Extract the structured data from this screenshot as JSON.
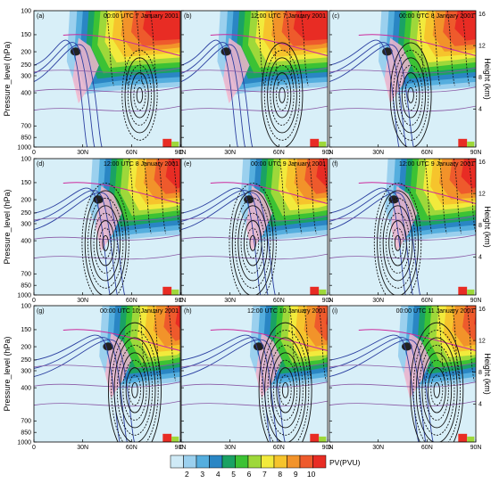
{
  "figure": {
    "y_axis_title_left": "Pressure_level (hPa)",
    "y_axis_title_right": "Height (km)",
    "pressure_ticks": [
      "100",
      "150",
      "200",
      "250",
      "300",
      "400",
      "700",
      "850",
      "1000"
    ],
    "height_ticks": [
      "16",
      "12",
      "8",
      "4"
    ],
    "x_ticks": [
      "0",
      "30N",
      "60N",
      "90N"
    ],
    "colorbar": {
      "label": "PV(PVU)",
      "tick_labels": [
        "2",
        "3",
        "4",
        "5",
        "6",
        "7",
        "8",
        "9",
        "10"
      ],
      "colors": [
        "#cfeaf6",
        "#9bd0ee",
        "#55aede",
        "#2a86c4",
        "#1aa264",
        "#3cc234",
        "#9ed83a",
        "#f2ea3c",
        "#f6c42c",
        "#f2932a",
        "#ee5a2c",
        "#e82c24"
      ]
    },
    "colors": {
      "background_fill": "#d8eff8",
      "contour_black": "#111111",
      "contour_blue": "#2b3fa0",
      "contour_magenta": "#cc2a9c",
      "contour_purple": "#8a5aa6",
      "pink_shading": "#f4b6cc"
    }
  },
  "chart_data": [
    {
      "type": "heatmap",
      "panel": "a",
      "label": "(a)",
      "time": "00:00 UTC 7 January 2001",
      "jet_lat_deg": 22,
      "contour_center_lat_deg": 65,
      "contour_strength": 0.45
    },
    {
      "type": "heatmap",
      "panel": "b",
      "label": "(b)",
      "time": "12:00 UTC 7 January 2001",
      "jet_lat_deg": 24,
      "contour_center_lat_deg": 62,
      "contour_strength": 0.5
    },
    {
      "type": "heatmap",
      "panel": "c",
      "label": "(c)",
      "time": "00:00 UTC 8 January 2001",
      "jet_lat_deg": 32,
      "contour_center_lat_deg": 50,
      "contour_strength": 0.65
    },
    {
      "type": "heatmap",
      "panel": "d",
      "label": "(d)",
      "time": "12:00 UTC 8 January 2001",
      "jet_lat_deg": 36,
      "contour_center_lat_deg": 44,
      "contour_strength": 0.75
    },
    {
      "type": "heatmap",
      "panel": "e",
      "label": "(e)",
      "time": "00:00 UTC 9 January 2001",
      "jet_lat_deg": 38,
      "contour_center_lat_deg": 44,
      "contour_strength": 0.8
    },
    {
      "type": "heatmap",
      "panel": "f",
      "label": "(f)",
      "time": "12:00 UTC 9 January 2001",
      "jet_lat_deg": 36,
      "contour_center_lat_deg": 42,
      "contour_strength": 0.85
    },
    {
      "type": "heatmap",
      "panel": "g",
      "label": "(g)",
      "time": "00:00 UTC 10 January 2001",
      "jet_lat_deg": 42,
      "contour_center_lat_deg": 62,
      "contour_strength": 0.95
    },
    {
      "type": "heatmap",
      "panel": "h",
      "label": "(h)",
      "time": "12:00 UTC 10 January 2001",
      "jet_lat_deg": 44,
      "contour_center_lat_deg": 64,
      "contour_strength": 1.0
    },
    {
      "type": "heatmap",
      "panel": "i",
      "label": "(i)",
      "time": "00:00 UTC 11 January 2001",
      "jet_lat_deg": 44,
      "contour_center_lat_deg": 66,
      "contour_strength": 1.0
    }
  ]
}
